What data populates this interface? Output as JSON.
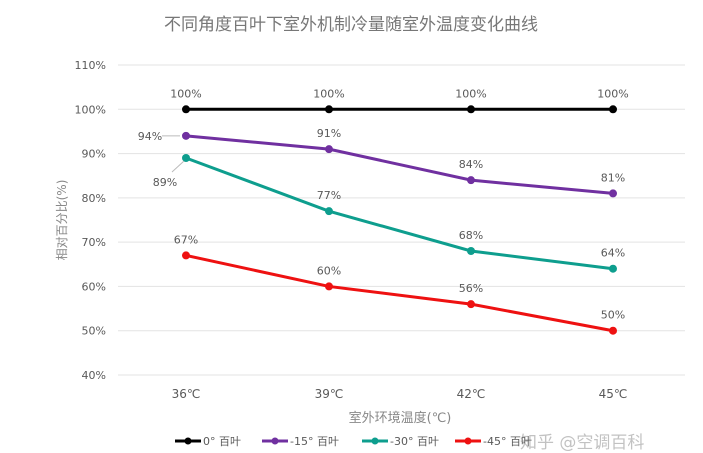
{
  "chart_data": {
    "type": "line",
    "title": "不同角度百叶下室外机制冷量随室外温度变化曲线",
    "xlabel": "室外环境温度(℃)",
    "ylabel": "相对百分比(%)",
    "categories": [
      "36℃",
      "39℃",
      "42℃",
      "45℃"
    ],
    "ylim": [
      40,
      110
    ],
    "yticks": [
      "40%",
      "50%",
      "60%",
      "70%",
      "80%",
      "90%",
      "100%",
      "110%"
    ],
    "grid": true,
    "legend_placement": "bottom",
    "series": [
      {
        "name": "0° 百叶",
        "color": "#000000",
        "values": [
          100,
          100,
          100,
          100
        ],
        "labels": [
          "100%",
          "100%",
          "100%",
          "100%"
        ]
      },
      {
        "name": "-15° 百叶",
        "color": "#7030A0",
        "values": [
          94,
          91,
          84,
          81
        ],
        "labels": [
          "94%",
          "91%",
          "84%",
          "81%"
        ]
      },
      {
        "name": "-30° 百叶",
        "color": "#0E9E8E",
        "values": [
          89,
          77,
          68,
          64
        ],
        "labels": [
          "89%",
          "77%",
          "68%",
          "64%"
        ]
      },
      {
        "name": "-45° 百叶",
        "color": "#EE1111",
        "values": [
          67,
          60,
          56,
          50
        ],
        "labels": [
          "67%",
          "60%",
          "56%",
          "50%"
        ]
      }
    ]
  },
  "watermark": "知乎 @空调百科"
}
